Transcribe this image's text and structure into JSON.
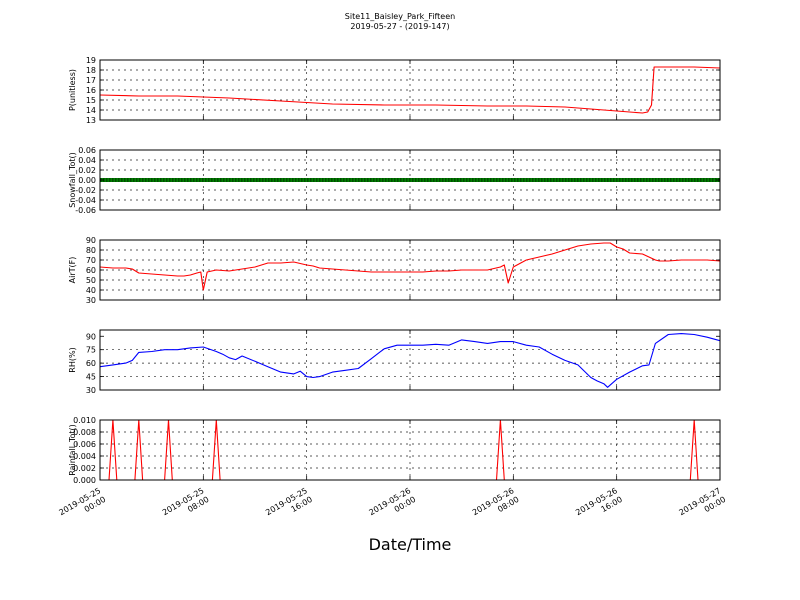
{
  "figure": {
    "title": "Site11_Baisley_Park_Fifteen",
    "subtitle": "2019-05-27 - (2019-147)",
    "xlabel": "Date/Time"
  },
  "chart_data": [
    {
      "type": "line",
      "ylabel": "P(unitless)",
      "color": "#ff0000",
      "ylim": [
        13,
        19
      ],
      "yticks": [
        13,
        14,
        15,
        16,
        17,
        18,
        19
      ],
      "yticklabels": [
        "13",
        "14",
        "15",
        "16",
        "17",
        "18",
        "19"
      ],
      "grid": true,
      "x_unit": "hours since 2019-05-25 00:00",
      "x_range": [
        0,
        48
      ],
      "xticks": [
        0,
        8,
        16,
        24,
        32,
        40,
        48
      ],
      "xticklabels": [
        [
          "2019-05-25",
          "00:00"
        ],
        [
          "2019-05-25",
          "08:00"
        ],
        [
          "2019-05-25",
          "16:00"
        ],
        [
          "2019-05-26",
          "00:00"
        ],
        [
          "2019-05-26",
          "08:00"
        ],
        [
          "2019-05-26",
          "16:00"
        ],
        [
          "2019-05-27",
          "00:00"
        ]
      ],
      "x": [
        0,
        3,
        6,
        10,
        14,
        18,
        22,
        26,
        30,
        33,
        36,
        39,
        41,
        42,
        42.4,
        42.7,
        42.9,
        43.5,
        46,
        48
      ],
      "y": [
        15.5,
        15.4,
        15.4,
        15.2,
        14.9,
        14.6,
        14.5,
        14.5,
        14.4,
        14.4,
        14.3,
        14.0,
        13.8,
        13.7,
        13.8,
        14.5,
        18.3,
        18.3,
        18.3,
        18.2
      ]
    },
    {
      "type": "line",
      "ylabel": "Snowfall_Tot()",
      "color": "#008000",
      "marker": "dot",
      "ylim": [
        -0.06,
        0.06
      ],
      "yticks": [
        -0.06,
        -0.04,
        -0.02,
        0.0,
        0.02,
        0.04,
        0.06
      ],
      "yticklabels": [
        "-0.06",
        "-0.04",
        "-0.02",
        "0.00",
        "0.02",
        "0.04",
        "0.06"
      ],
      "grid": true,
      "x_unit": "hours since 2019-05-25 00:00",
      "x_range": [
        0,
        48
      ],
      "x": [
        0,
        48
      ],
      "y": [
        0,
        0
      ]
    },
    {
      "type": "line",
      "ylabel": "AirT(F)",
      "color": "#ff0000",
      "ylim": [
        30,
        90
      ],
      "yticks": [
        30,
        40,
        50,
        60,
        70,
        80,
        90
      ],
      "yticklabels": [
        "30",
        "40",
        "50",
        "60",
        "70",
        "80",
        "90"
      ],
      "grid": true,
      "x_unit": "hours since 2019-05-25 00:00",
      "x_range": [
        0,
        48
      ],
      "x": [
        0,
        1,
        2,
        2.5,
        3,
        4,
        5,
        6,
        6.5,
        7,
        7.5,
        7.8,
        8.0,
        8.3,
        9,
        10,
        11,
        12,
        13,
        14,
        15,
        16,
        16.5,
        17,
        18,
        19,
        20,
        21,
        22,
        23,
        24,
        25,
        26,
        27,
        28,
        29,
        30,
        31,
        31.3,
        31.6,
        32,
        33,
        34,
        35,
        36,
        37,
        38,
        39,
        39.5,
        40,
        40.5,
        41,
        42,
        43,
        43.3,
        44,
        45,
        46,
        47,
        48
      ],
      "y": [
        63,
        62,
        62,
        61,
        57,
        56,
        55,
        54,
        54,
        55,
        57,
        58,
        40,
        58,
        60,
        59,
        61,
        63,
        67,
        67,
        68,
        65,
        64,
        62,
        61,
        60,
        59,
        58,
        58,
        58,
        58,
        58,
        59,
        59,
        60,
        60,
        60,
        63,
        65,
        47,
        63,
        70,
        73,
        76,
        80,
        84,
        86,
        87,
        87,
        83,
        81,
        77,
        76,
        70,
        69,
        69,
        70,
        70,
        70,
        69
      ]
    },
    {
      "type": "line",
      "ylabel": "RH(%)",
      "color": "#0000ff",
      "ylim": [
        30,
        97
      ],
      "yticks": [
        30,
        45,
        60,
        75,
        90
      ],
      "yticklabels": [
        "30",
        "45",
        "60",
        "75",
        "90"
      ],
      "grid": true,
      "x_unit": "hours since 2019-05-25 00:00",
      "x_range": [
        0,
        48
      ],
      "x": [
        0,
        1,
        2,
        2.5,
        3,
        4,
        5,
        6,
        7,
        8,
        9,
        9.5,
        10,
        10.5,
        11,
        12,
        13,
        14,
        15,
        15.5,
        16,
        16.5,
        17,
        18,
        19,
        20,
        21,
        22,
        23,
        24,
        25,
        26,
        27,
        28,
        29,
        30,
        31,
        32,
        33,
        34,
        35,
        36,
        37,
        38,
        38.5,
        39,
        39.3,
        40,
        41,
        42,
        42.5,
        43,
        44,
        45,
        46,
        47,
        48
      ],
      "y": [
        56,
        58,
        60,
        63,
        72,
        73,
        75,
        75,
        77,
        78,
        73,
        70,
        66,
        64,
        68,
        62,
        56,
        50,
        48,
        51,
        45,
        44,
        45,
        50,
        52,
        54,
        65,
        76,
        80,
        80,
        80,
        81,
        80,
        86,
        84,
        82,
        84,
        84,
        80,
        78,
        70,
        63,
        58,
        44,
        40,
        37,
        33,
        42,
        50,
        57,
        58,
        82,
        92,
        93,
        92,
        89,
        85
      ]
    },
    {
      "type": "line",
      "ylabel": "Rainfall_Tot()",
      "color": "#ff0000",
      "ylim": [
        0,
        0.01
      ],
      "yticks": [
        0.0,
        0.002,
        0.004,
        0.006,
        0.008,
        0.01
      ],
      "yticklabels": [
        "0.000",
        "0.002",
        "0.004",
        "0.006",
        "0.008",
        "0.010"
      ],
      "grid": true,
      "x_unit": "hours since 2019-05-25 00:00",
      "x_range": [
        0,
        48
      ],
      "x": [
        0,
        0.7,
        1.0,
        1.3,
        2.7,
        3.0,
        3.3,
        5.0,
        5.3,
        5.6,
        8.7,
        9.0,
        9.3,
        30.7,
        31.0,
        31.3,
        45.7,
        46.0,
        46.3,
        48
      ],
      "y": [
        0,
        0,
        0.01,
        0,
        0,
        0.01,
        0,
        0,
        0.01,
        0,
        0,
        0.01,
        0,
        0,
        0.01,
        0,
        0,
        0.01,
        0,
        0
      ]
    }
  ]
}
